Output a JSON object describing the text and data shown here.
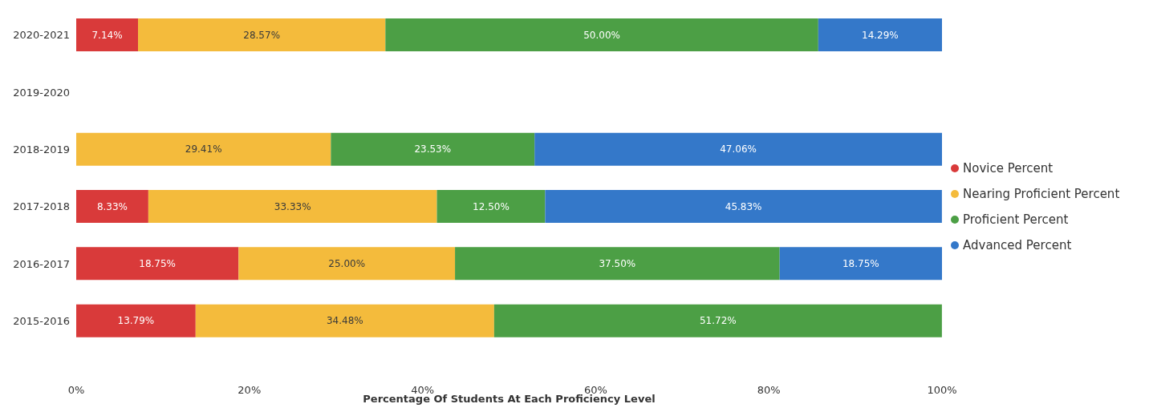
{
  "chart_data": {
    "type": "bar",
    "orientation": "horizontal",
    "stacked": true,
    "xlabel": "Percentage Of Students At Each Proficiency Level",
    "categories": [
      "2020-2021",
      "2019-2020",
      "2018-2019",
      "2017-2018",
      "2016-2017",
      "2015-2016"
    ],
    "series": [
      {
        "name": "Novice Percent",
        "color": "#d93a3a",
        "values": [
          7.14,
          null,
          null,
          8.33,
          18.75,
          13.79
        ],
        "value_labels": [
          "7.14%",
          null,
          null,
          "8.33%",
          "18.75%",
          "13.79%"
        ]
      },
      {
        "name": "Nearing Proficient Percent",
        "color": "#f4bb3c",
        "values": [
          28.57,
          null,
          29.41,
          33.33,
          25.0,
          34.48
        ],
        "value_labels": [
          "28.57%",
          null,
          "29.41%",
          "33.33%",
          "25.00%",
          "34.48%"
        ]
      },
      {
        "name": "Proficient Percent",
        "color": "#4c9f45",
        "values": [
          50.0,
          null,
          23.53,
          12.5,
          37.5,
          51.72
        ],
        "value_labels": [
          "50.00%",
          null,
          "23.53%",
          "12.50%",
          "37.50%",
          "51.72%"
        ]
      },
      {
        "name": "Advanced Percent",
        "color": "#3478c9",
        "values": [
          14.29,
          null,
          47.06,
          45.83,
          18.75,
          null
        ],
        "value_labels": [
          "14.29%",
          null,
          "47.06%",
          "45.83%",
          "18.75%",
          null
        ]
      }
    ],
    "xlim": [
      0,
      100
    ],
    "xticks": [
      {
        "value": 0,
        "label": "0%"
      },
      {
        "value": 20,
        "label": "20%"
      },
      {
        "value": 40,
        "label": "40%"
      },
      {
        "value": 60,
        "label": "60%"
      },
      {
        "value": 80,
        "label": "80%"
      },
      {
        "value": 100,
        "label": "100%"
      }
    ],
    "grid": false,
    "legend": "right"
  }
}
